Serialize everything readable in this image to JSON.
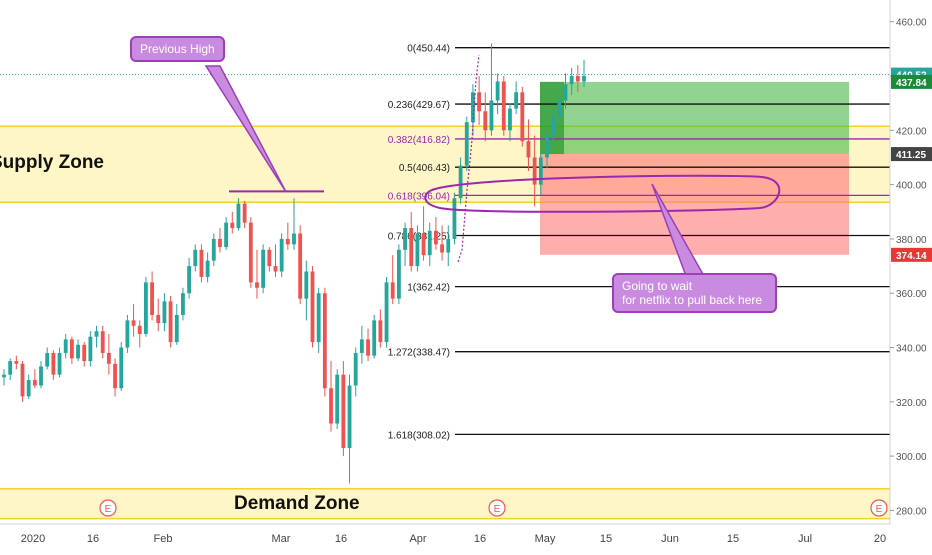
{
  "chart_data": {
    "type": "candlestick",
    "x_ticks": [
      "2020",
      "16",
      "Feb",
      "Mar",
      "16",
      "Apr",
      "16",
      "May",
      "15",
      "Jun",
      "15",
      "Jul",
      "20"
    ],
    "y_ticks": [
      280,
      300,
      320,
      340,
      360,
      380,
      400,
      420,
      440,
      460
    ],
    "ylim": [
      275,
      468
    ],
    "fib_levels": [
      {
        "label": "0(450.44)",
        "value": 450.44
      },
      {
        "label": "0.236(429.67)",
        "value": 429.67
      },
      {
        "label": "0.382(416.82)",
        "value": 416.82
      },
      {
        "label": "0.5(406.43)",
        "value": 406.43
      },
      {
        "label": "0.618(396.04)",
        "value": 396.04
      },
      {
        "label": "0.786(381.25)",
        "value": 381.25
      },
      {
        "label": "1(362.42)",
        "value": 362.42
      },
      {
        "label": "1.272(338.47)",
        "value": 338.47
      },
      {
        "label": "1.618(308.02)",
        "value": 308.02
      }
    ],
    "price_badges": [
      {
        "label": "440.52",
        "value": 440.52,
        "color": "#26a69a"
      },
      {
        "label": "437.84",
        "value": 437.84,
        "color": "#1b8a3a"
      },
      {
        "label": "411.25",
        "value": 411.25,
        "color": "#444444"
      },
      {
        "label": "374.14",
        "value": 374.14,
        "color": "#e53935"
      }
    ],
    "zones": [
      {
        "label": "Supply Zone",
        "low": 393.5,
        "high": 421.5
      },
      {
        "label": "Demand Zone",
        "low": 277,
        "high": 288
      }
    ],
    "position_box": {
      "entry": 411.25,
      "target": 437.84,
      "stop": 374.14
    },
    "annotations": [
      {
        "text": "Previous High"
      },
      {
        "text_line1": "Going to wait",
        "text_line2": "for netflix to pull back here"
      }
    ],
    "event_markers": [
      "E",
      "E",
      "E"
    ],
    "candles": [
      [
        329,
        332,
        326,
        330
      ],
      [
        330,
        336,
        328,
        335
      ],
      [
        335,
        337,
        332,
        334
      ],
      [
        334,
        335,
        320,
        322
      ],
      [
        322,
        330,
        321,
        328
      ],
      [
        328,
        332,
        325,
        326
      ],
      [
        326,
        335,
        325,
        333
      ],
      [
        333,
        340,
        332,
        338
      ],
      [
        338,
        339,
        328,
        330
      ],
      [
        330,
        340,
        329,
        338
      ],
      [
        338,
        345,
        336,
        343
      ],
      [
        343,
        344,
        334,
        336
      ],
      [
        336,
        343,
        335,
        341
      ],
      [
        341,
        342,
        333,
        335
      ],
      [
        335,
        346,
        333,
        344
      ],
      [
        344,
        348,
        340,
        346
      ],
      [
        346,
        348,
        336,
        338
      ],
      [
        338,
        345,
        330,
        334
      ],
      [
        334,
        336,
        322,
        325
      ],
      [
        325,
        342,
        324,
        340
      ],
      [
        340,
        352,
        338,
        350
      ],
      [
        350,
        356,
        344,
        348
      ],
      [
        348,
        350,
        340,
        345
      ],
      [
        345,
        366,
        344,
        364
      ],
      [
        364,
        368,
        350,
        352
      ],
      [
        352,
        358,
        346,
        349
      ],
      [
        349,
        360,
        346,
        357
      ],
      [
        357,
        359,
        340,
        342
      ],
      [
        342,
        356,
        341,
        352
      ],
      [
        352,
        362,
        350,
        360
      ],
      [
        360,
        373,
        358,
        370
      ],
      [
        370,
        378,
        368,
        376
      ],
      [
        376,
        378,
        364,
        366
      ],
      [
        366,
        375,
        364,
        372
      ],
      [
        372,
        382,
        370,
        380
      ],
      [
        380,
        384,
        375,
        377
      ],
      [
        377,
        388,
        376,
        386
      ],
      [
        386,
        390,
        382,
        384
      ],
      [
        384,
        395,
        383,
        393
      ],
      [
        393,
        394,
        384,
        386
      ],
      [
        386,
        388,
        362,
        364
      ],
      [
        364,
        376,
        358,
        362
      ],
      [
        362,
        378,
        360,
        376
      ],
      [
        376,
        377,
        368,
        370
      ],
      [
        370,
        378,
        366,
        368
      ],
      [
        368,
        382,
        366,
        380
      ],
      [
        380,
        386,
        376,
        378
      ],
      [
        378,
        395,
        376,
        382
      ],
      [
        382,
        385,
        356,
        358
      ],
      [
        358,
        372,
        350,
        368
      ],
      [
        368,
        370,
        340,
        342
      ],
      [
        342,
        362,
        338,
        360
      ],
      [
        360,
        362,
        322,
        325
      ],
      [
        325,
        335,
        309,
        312
      ],
      [
        312,
        332,
        310,
        330
      ],
      [
        330,
        335,
        300,
        303
      ],
      [
        303,
        330,
        290,
        326
      ],
      [
        326,
        340,
        322,
        338
      ],
      [
        338,
        348,
        334,
        343
      ],
      [
        343,
        347,
        335,
        337
      ],
      [
        337,
        352,
        336,
        350
      ],
      [
        350,
        354,
        340,
        342
      ],
      [
        342,
        366,
        340,
        364
      ],
      [
        364,
        374,
        356,
        358
      ],
      [
        358,
        378,
        356,
        376
      ],
      [
        376,
        386,
        370,
        384
      ],
      [
        384,
        390,
        368,
        370
      ],
      [
        370,
        385,
        368,
        382
      ],
      [
        382,
        392,
        372,
        374
      ],
      [
        374,
        386,
        370,
        383
      ],
      [
        383,
        388,
        376,
        378
      ],
      [
        378,
        385,
        372,
        375
      ],
      [
        375,
        385,
        370,
        380
      ],
      [
        380,
        397,
        378,
        395
      ],
      [
        395,
        410,
        393,
        407
      ],
      [
        407,
        425,
        405,
        423
      ],
      [
        423,
        437,
        418,
        434
      ],
      [
        434,
        440,
        422,
        427
      ],
      [
        427,
        434,
        416,
        420
      ],
      [
        420,
        452,
        418,
        431
      ],
      [
        431,
        441,
        426,
        438
      ],
      [
        438,
        440,
        418,
        420
      ],
      [
        420,
        430,
        416,
        428
      ],
      [
        428,
        438,
        426,
        434
      ],
      [
        434,
        436,
        414,
        416
      ],
      [
        416,
        424,
        405,
        410
      ],
      [
        410,
        418,
        392,
        400
      ],
      [
        400,
        412,
        396,
        410
      ],
      [
        410,
        420,
        406,
        418
      ],
      [
        418,
        428,
        414,
        425
      ],
      [
        425,
        436,
        421,
        431
      ],
      [
        431,
        441,
        428,
        437
      ],
      [
        437,
        443,
        433,
        440
      ],
      [
        440,
        444,
        434,
        438
      ],
      [
        438,
        446,
        436,
        440
      ]
    ]
  }
}
